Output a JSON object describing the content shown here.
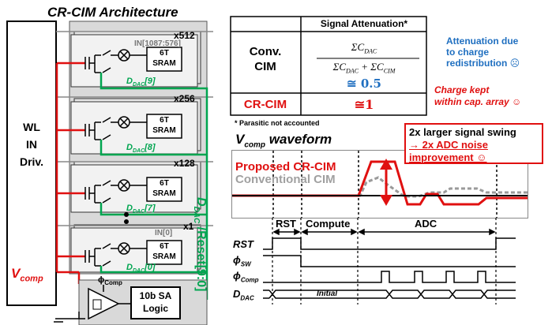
{
  "left": {
    "title": "CR-CIM Architecture",
    "driver": [
      "WL",
      "IN",
      "Driv."
    ],
    "stacks": [
      {
        "mult": "x512",
        "in_label": "IN[1087:576]",
        "ddac_main": "D",
        "ddac_sub": "DAC",
        "ddac_idx": "[9]"
      },
      {
        "mult": "x256",
        "in_label": "",
        "ddac_main": "D",
        "ddac_sub": "DAC",
        "ddac_idx": "[8]"
      },
      {
        "mult": "x128",
        "in_label": "",
        "ddac_main": "D",
        "ddac_sub": "DAC",
        "ddac_idx": "[7]"
      },
      {
        "mult": "x1",
        "in_label": "IN[0]",
        "ddac_main": "D",
        "ddac_sub": "DAC",
        "ddac_idx": "[0]"
      }
    ],
    "sram": [
      "6T",
      "SRAM"
    ],
    "bus_label_main": "D",
    "bus_label_sub": "DAC",
    "bus_label_rest": " /Reset[9:0]",
    "vcomp_main": "V",
    "vcomp_sub": "comp",
    "phi_main": "ϕ",
    "phi_sub": "Comp",
    "sa_logic": [
      "10b SA",
      "Logic"
    ]
  },
  "table": {
    "header": "Signal Attenuation*",
    "rows": [
      {
        "label": [
          "Conv.",
          "CIM"
        ],
        "value_num": "ΣC",
        "value_num_sub": "DAC",
        "value_den_a": "ΣC",
        "value_den_a_sub": "DAC",
        "value_den_plus": " + ΣC",
        "value_den_b_sub": "CIM",
        "value_approx": "≅ 0.5"
      },
      {
        "label": [
          "CR-CIM"
        ],
        "value": "≅1"
      }
    ],
    "footnote": "* Parasitic not accounted",
    "note_conv": [
      "Attenuation due",
      "to charge",
      "redistribution ☹"
    ],
    "note_cr": [
      "Charge kept",
      "within cap. array ☺"
    ],
    "colors": {
      "blue": "#1f6fc0",
      "red": "#e01010",
      "green": "#00a550"
    }
  },
  "waveform": {
    "title_main": "V",
    "title_sub": "comp",
    "title_rest": " waveform",
    "legend_proposed": "Proposed CR-CIM",
    "legend_conv": "Conventional CIM",
    "callout": [
      "2x larger signal swing",
      "→ 2x ADC noise",
      "improvement ☺"
    ]
  },
  "timing": {
    "phases": [
      "RST",
      "Compute",
      "ADC"
    ],
    "signals": [
      {
        "main": "RST",
        "sub": ""
      },
      {
        "main": "ϕ",
        "sub": "SW"
      },
      {
        "main": "ϕ",
        "sub": "Comp"
      },
      {
        "main": "D",
        "sub": "DAC"
      }
    ],
    "initial": "Initial"
  }
}
